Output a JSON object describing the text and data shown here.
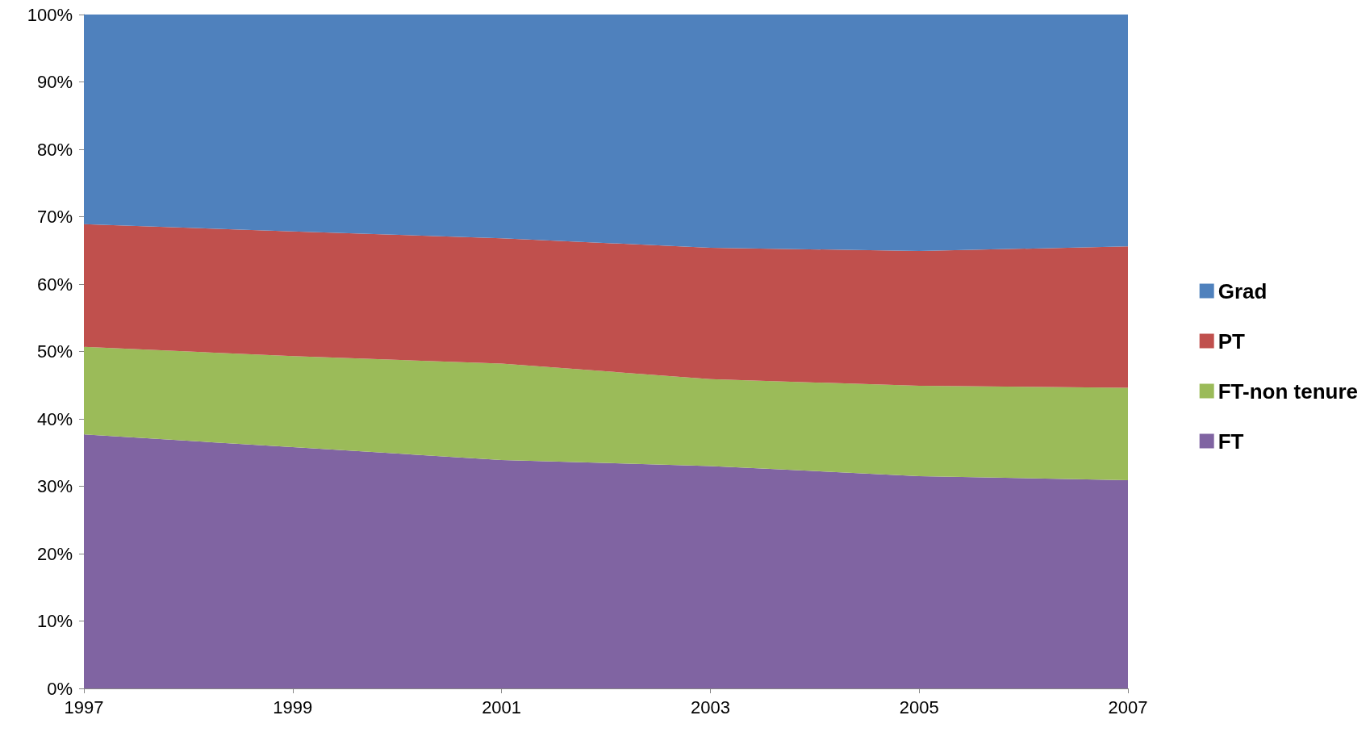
{
  "chart_data": {
    "type": "area",
    "stacked": true,
    "legend": "right",
    "x": [
      1997,
      1999,
      2001,
      2003,
      2005,
      2007
    ],
    "xlim": [
      1997,
      2007
    ],
    "xticks": [
      1997,
      1999,
      2001,
      2003,
      2005,
      2007
    ],
    "ylim": [
      0,
      100
    ],
    "yticks": [
      {
        "value": 0,
        "label": "0%"
      },
      {
        "value": 10,
        "label": "10%"
      },
      {
        "value": 20,
        "label": "20%"
      },
      {
        "value": 30,
        "label": "30%"
      },
      {
        "value": 40,
        "label": "40%"
      },
      {
        "value": 50,
        "label": "50%"
      },
      {
        "value": 60,
        "label": "60%"
      },
      {
        "value": 70,
        "label": "70%"
      },
      {
        "value": 80,
        "label": "80%"
      },
      {
        "value": 90,
        "label": "90%"
      },
      {
        "value": 100,
        "label": "100%"
      }
    ],
    "series": [
      {
        "name": "FT",
        "color": "#8064a2",
        "values": [
          37.7,
          35.8,
          33.9,
          33.0,
          31.5,
          30.9
        ]
      },
      {
        "name": "FT-non tenure",
        "color": "#9bbb59",
        "values": [
          13.0,
          13.5,
          14.3,
          12.9,
          13.4,
          13.7
        ]
      },
      {
        "name": "PT",
        "color": "#c0504d",
        "values": [
          18.2,
          18.5,
          18.6,
          19.5,
          20.0,
          21.0
        ]
      },
      {
        "name": "Grad",
        "color": "#4f81bd",
        "values": [
          31.1,
          32.2,
          33.2,
          34.6,
          35.1,
          34.4
        ]
      }
    ]
  }
}
